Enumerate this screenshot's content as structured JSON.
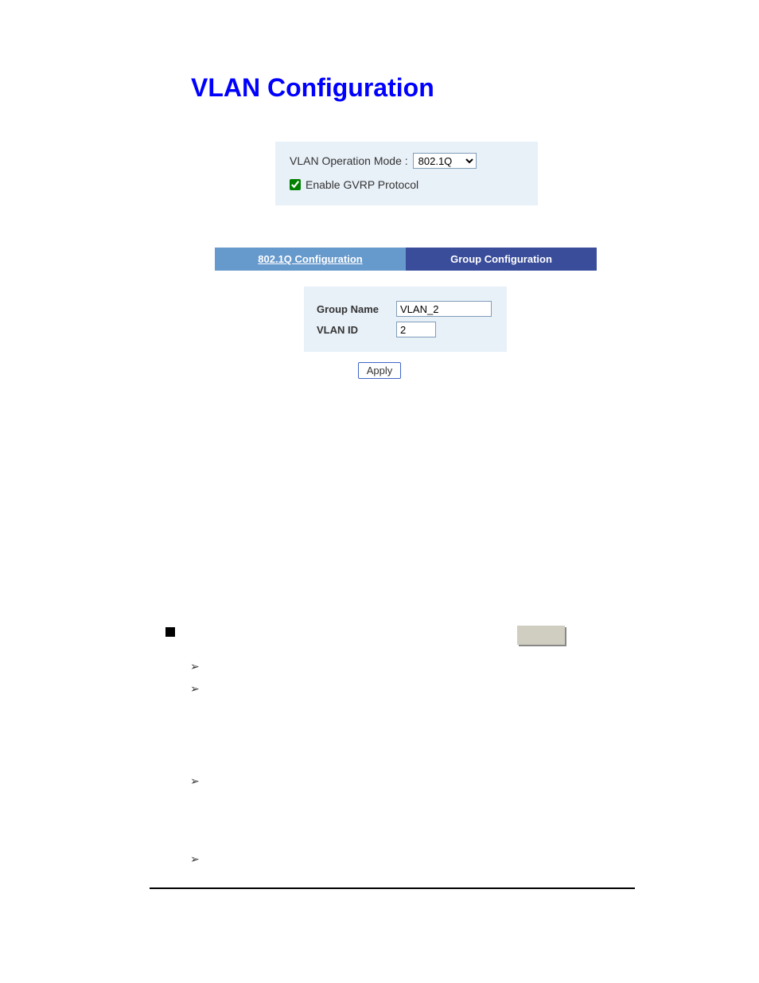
{
  "title": "VLAN Configuration",
  "mode": {
    "label": "VLAN Operation Mode :",
    "selected": "802.1Q",
    "gvrp_label": "Enable GVRP Protocol",
    "gvrp_checked": true
  },
  "tabs": {
    "left": "802.1Q Configuration",
    "right": "Group Configuration"
  },
  "form": {
    "group_name_label": "Group Name",
    "group_name_value": "VLAN_2",
    "vlan_id_label": "VLAN ID",
    "vlan_id_value": "2"
  },
  "apply_button": "Apply",
  "colors": {
    "title": "#0000ff",
    "panel_bg": "#e8f0f8",
    "tab_left_bg": "#6699cc",
    "tab_right_bg": "#3a4d9b",
    "tab_text": "#ffffff",
    "input_border": "#7f9db9",
    "button_border": "#4169c8",
    "gray_box": "#d0cec0"
  },
  "arrows": {
    "glyph": "➢"
  }
}
